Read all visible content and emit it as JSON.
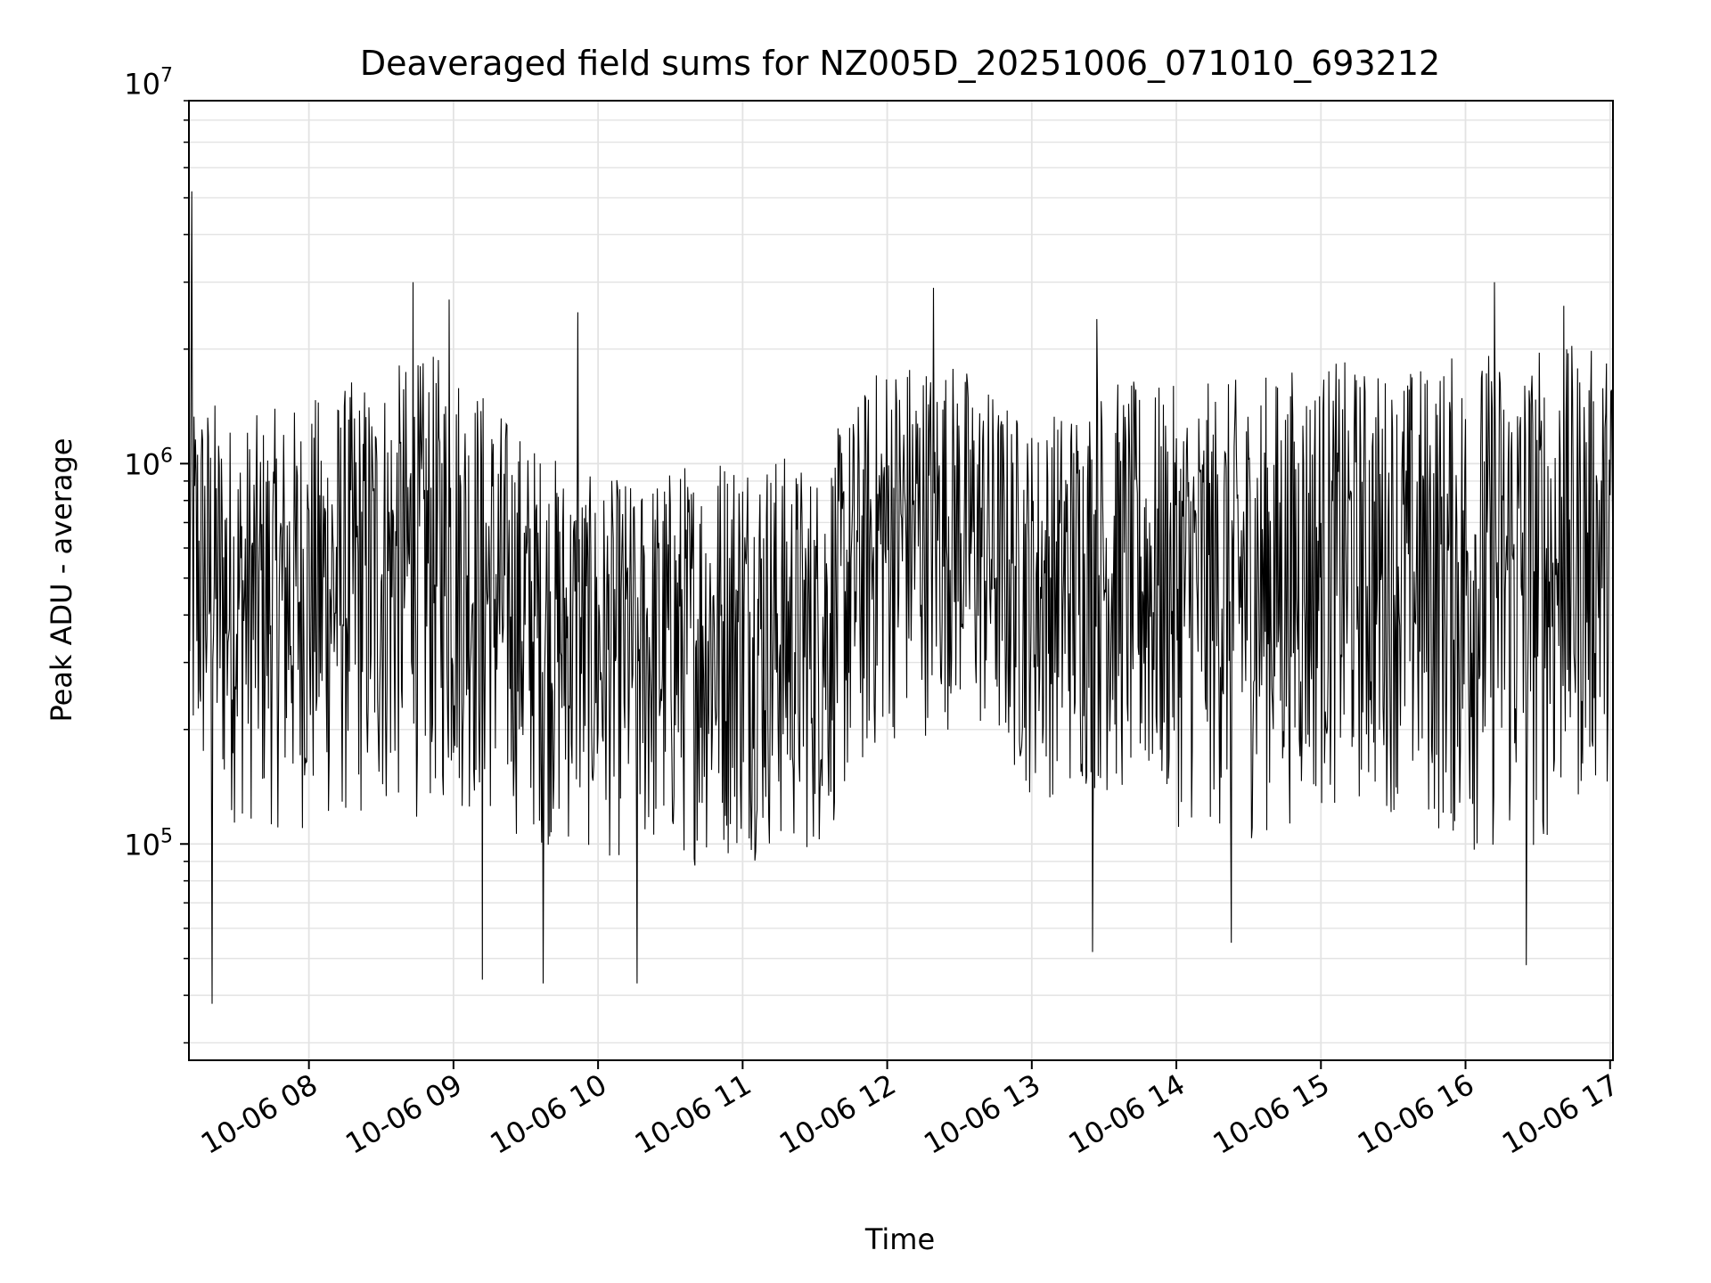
{
  "chart_data": {
    "type": "line",
    "title": "Deaveraged field sums for NZ005D_20251006_071010_693212",
    "xlabel": "Time",
    "ylabel": "Peak ADU - average",
    "yscale": "log",
    "ylim": [
      27000,
      9000000
    ],
    "xlim_hours": [
      7.17,
      17.02
    ],
    "grid": true,
    "x_tick_hours": [
      8,
      9,
      10,
      11,
      12,
      13,
      14,
      15,
      16,
      17
    ],
    "x_tick_labels": [
      "10-06 08",
      "10-06 09",
      "10-06 10",
      "10-06 11",
      "10-06 12",
      "10-06 13",
      "10-06 14",
      "10-06 15",
      "10-06 16",
      "10-06 17"
    ],
    "y_ticks": [
      100000,
      1000000,
      10000000
    ],
    "y_tick_labels": [
      {
        "base": "10",
        "exp": "5"
      },
      {
        "base": "10",
        "exp": "6"
      },
      {
        "base": "10",
        "exp": "7"
      }
    ],
    "series": [
      {
        "name": "Peak ADU - average",
        "color": "#000000",
        "samples_per_hour": 200,
        "envelope": {
          "hours": [
            7.17,
            7.5,
            8.0,
            8.5,
            9.0,
            9.5,
            10.0,
            10.5,
            11.0,
            11.5,
            12.0,
            12.5,
            13.0,
            13.5,
            14.0,
            14.5,
            15.0,
            15.5,
            16.0,
            16.5,
            17.02
          ],
          "low": [
            120000,
            110000,
            105000,
            110000,
            120000,
            100000,
            90000,
            85000,
            90000,
            90000,
            180000,
            200000,
            130000,
            130000,
            110000,
            100000,
            120000,
            120000,
            90000,
            90000,
            150000
          ],
          "high": [
            1800000,
            1300000,
            1500000,
            1800000,
            2000000,
            1200000,
            900000,
            1000000,
            1200000,
            1000000,
            2000000,
            1900000,
            1300000,
            1700000,
            1600000,
            1700000,
            1900000,
            1800000,
            2000000,
            2100000,
            2000000
          ]
        },
        "spikes": [
          {
            "hour": 7.19,
            "value": 5200000
          },
          {
            "hour": 7.33,
            "value": 38000
          },
          {
            "hour": 8.72,
            "value": 3000000
          },
          {
            "hour": 8.97,
            "value": 2700000
          },
          {
            "hour": 9.2,
            "value": 44000
          },
          {
            "hour": 9.62,
            "value": 43000
          },
          {
            "hour": 9.86,
            "value": 2500000
          },
          {
            "hour": 10.27,
            "value": 43000
          },
          {
            "hour": 12.32,
            "value": 2900000
          },
          {
            "hour": 13.45,
            "value": 2400000
          },
          {
            "hour": 13.42,
            "value": 52000
          },
          {
            "hour": 14.38,
            "value": 55000
          },
          {
            "hour": 16.2,
            "value": 3000000
          },
          {
            "hour": 16.42,
            "value": 48000
          },
          {
            "hour": 16.68,
            "value": 2600000
          }
        ]
      }
    ]
  }
}
